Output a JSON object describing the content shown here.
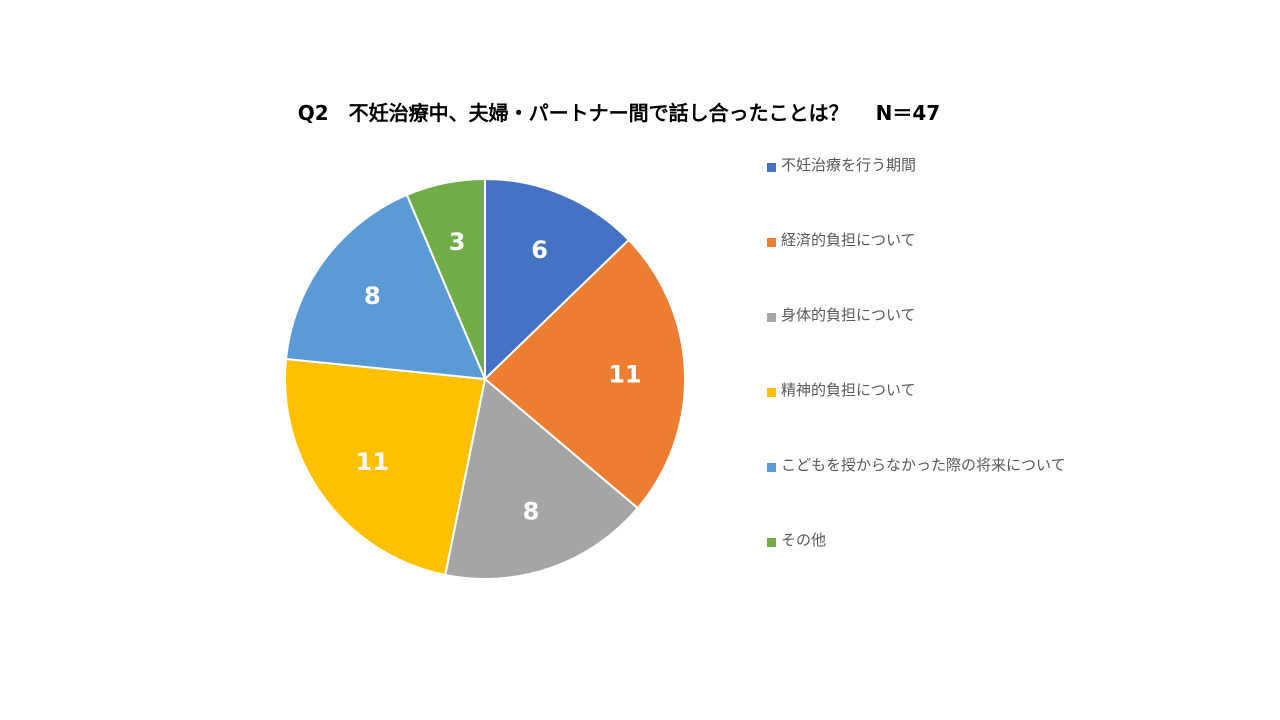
{
  "chart_data": {
    "type": "pie",
    "title": "Q2　不妊治療中、夫婦・パートナー間で話し合ったことは？　 N＝47",
    "legend_position": "right",
    "slices": [
      {
        "label": "不妊治療を行う期間",
        "value": 6,
        "color": "#4472C4"
      },
      {
        "label": "経済的負担について",
        "value": 11,
        "color": "#ED7D31"
      },
      {
        "label": "身体的負担について",
        "value": 8,
        "color": "#A5A5A5"
      },
      {
        "label": "精神的負担について",
        "value": 11,
        "color": "#FFC000"
      },
      {
        "label": "こどもを授からなかった際の将来について",
        "value": 8,
        "color": "#5B9BD5"
      },
      {
        "label": "その他",
        "value": 3,
        "color": "#70AD47"
      }
    ]
  }
}
